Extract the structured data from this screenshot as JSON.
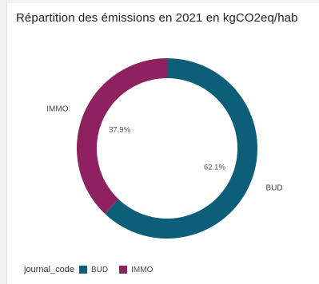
{
  "chart_data": {
    "type": "pie",
    "title": "Répartition des émissions en 2021 en kgCO2eq/hab",
    "legend_title": "journal_code",
    "legend_position": "bottom-left",
    "donut": true,
    "slices": [
      {
        "label": "BUD",
        "value": 62.1,
        "display": "62.1%",
        "color": "#0c5e79"
      },
      {
        "label": "IMMO",
        "value": 37.9,
        "display": "37.9%",
        "color": "#8e2160"
      }
    ]
  }
}
